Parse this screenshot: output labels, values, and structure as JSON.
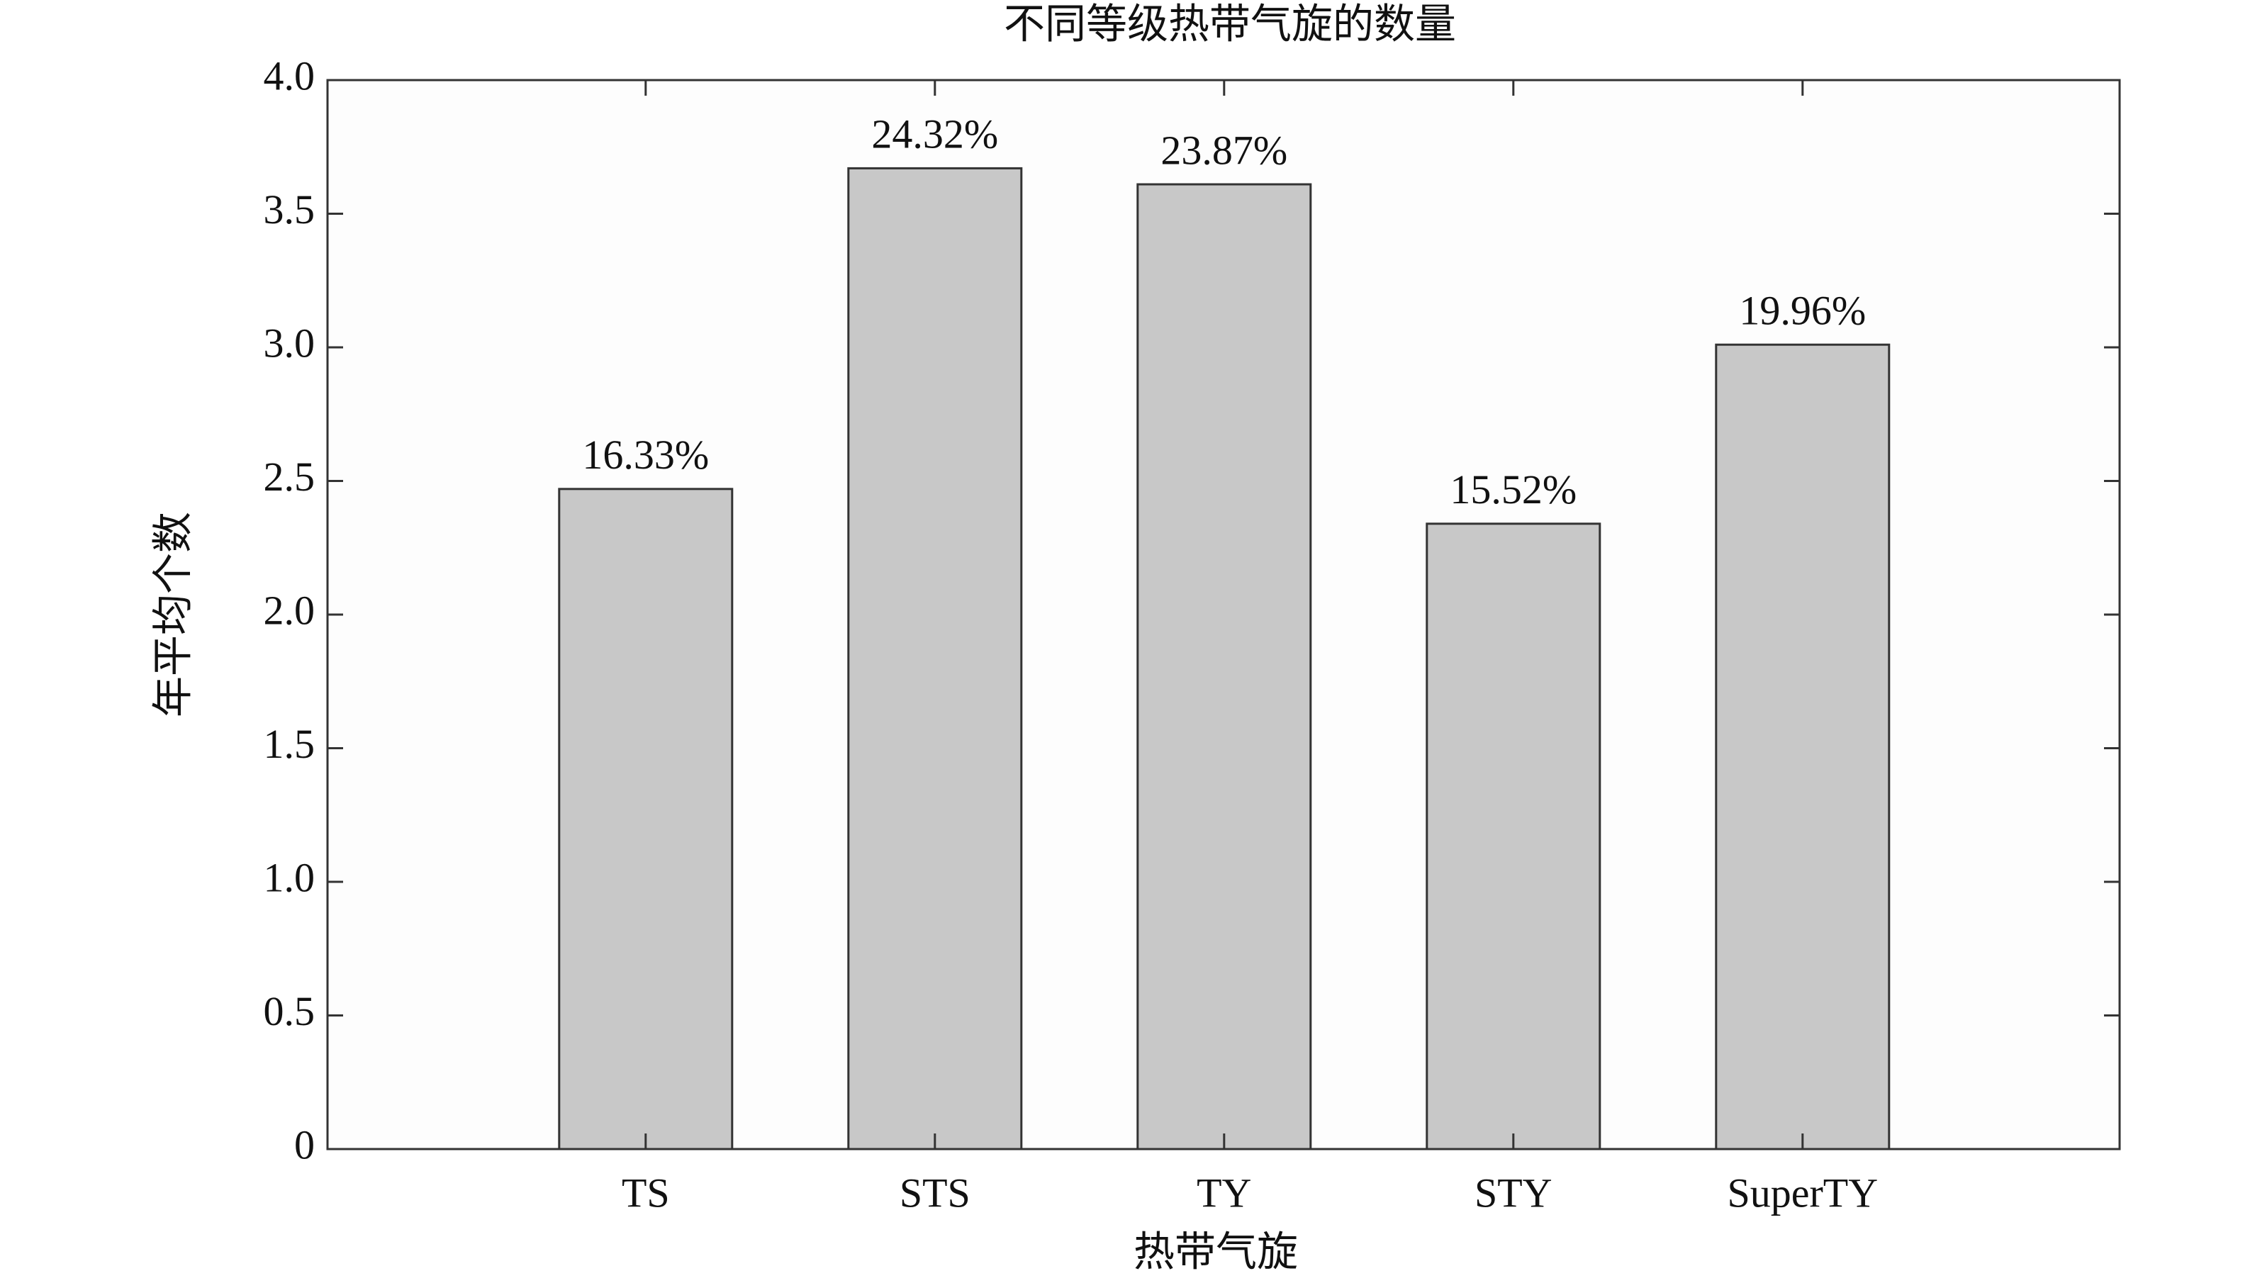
{
  "chart_data": {
    "type": "bar",
    "title": "不同等级热带气旋的数量",
    "x_label": "热带气旋",
    "y_label": "年平均个数",
    "categories": [
      "TS",
      "STS",
      "TY",
      "STY",
      "SuperTY"
    ],
    "values": [
      2.47,
      3.67,
      3.61,
      2.34,
      3.01
    ],
    "annotations": [
      "16.33%",
      "24.32%",
      "23.87%",
      "15.52%",
      "19.96%"
    ],
    "color": "#c8c8c8",
    "ylim": [
      0,
      4
    ],
    "yticks": [
      0,
      0.5,
      {
        "value": 1,
        "label": "1.0"
      },
      1.5,
      {
        "value": 2,
        "label": "2.0"
      },
      2.5,
      {
        "value": 3,
        "label": "3.0"
      },
      3.5,
      {
        "value": 4,
        "label": "4.0"
      }
    ],
    "grid": false
  }
}
